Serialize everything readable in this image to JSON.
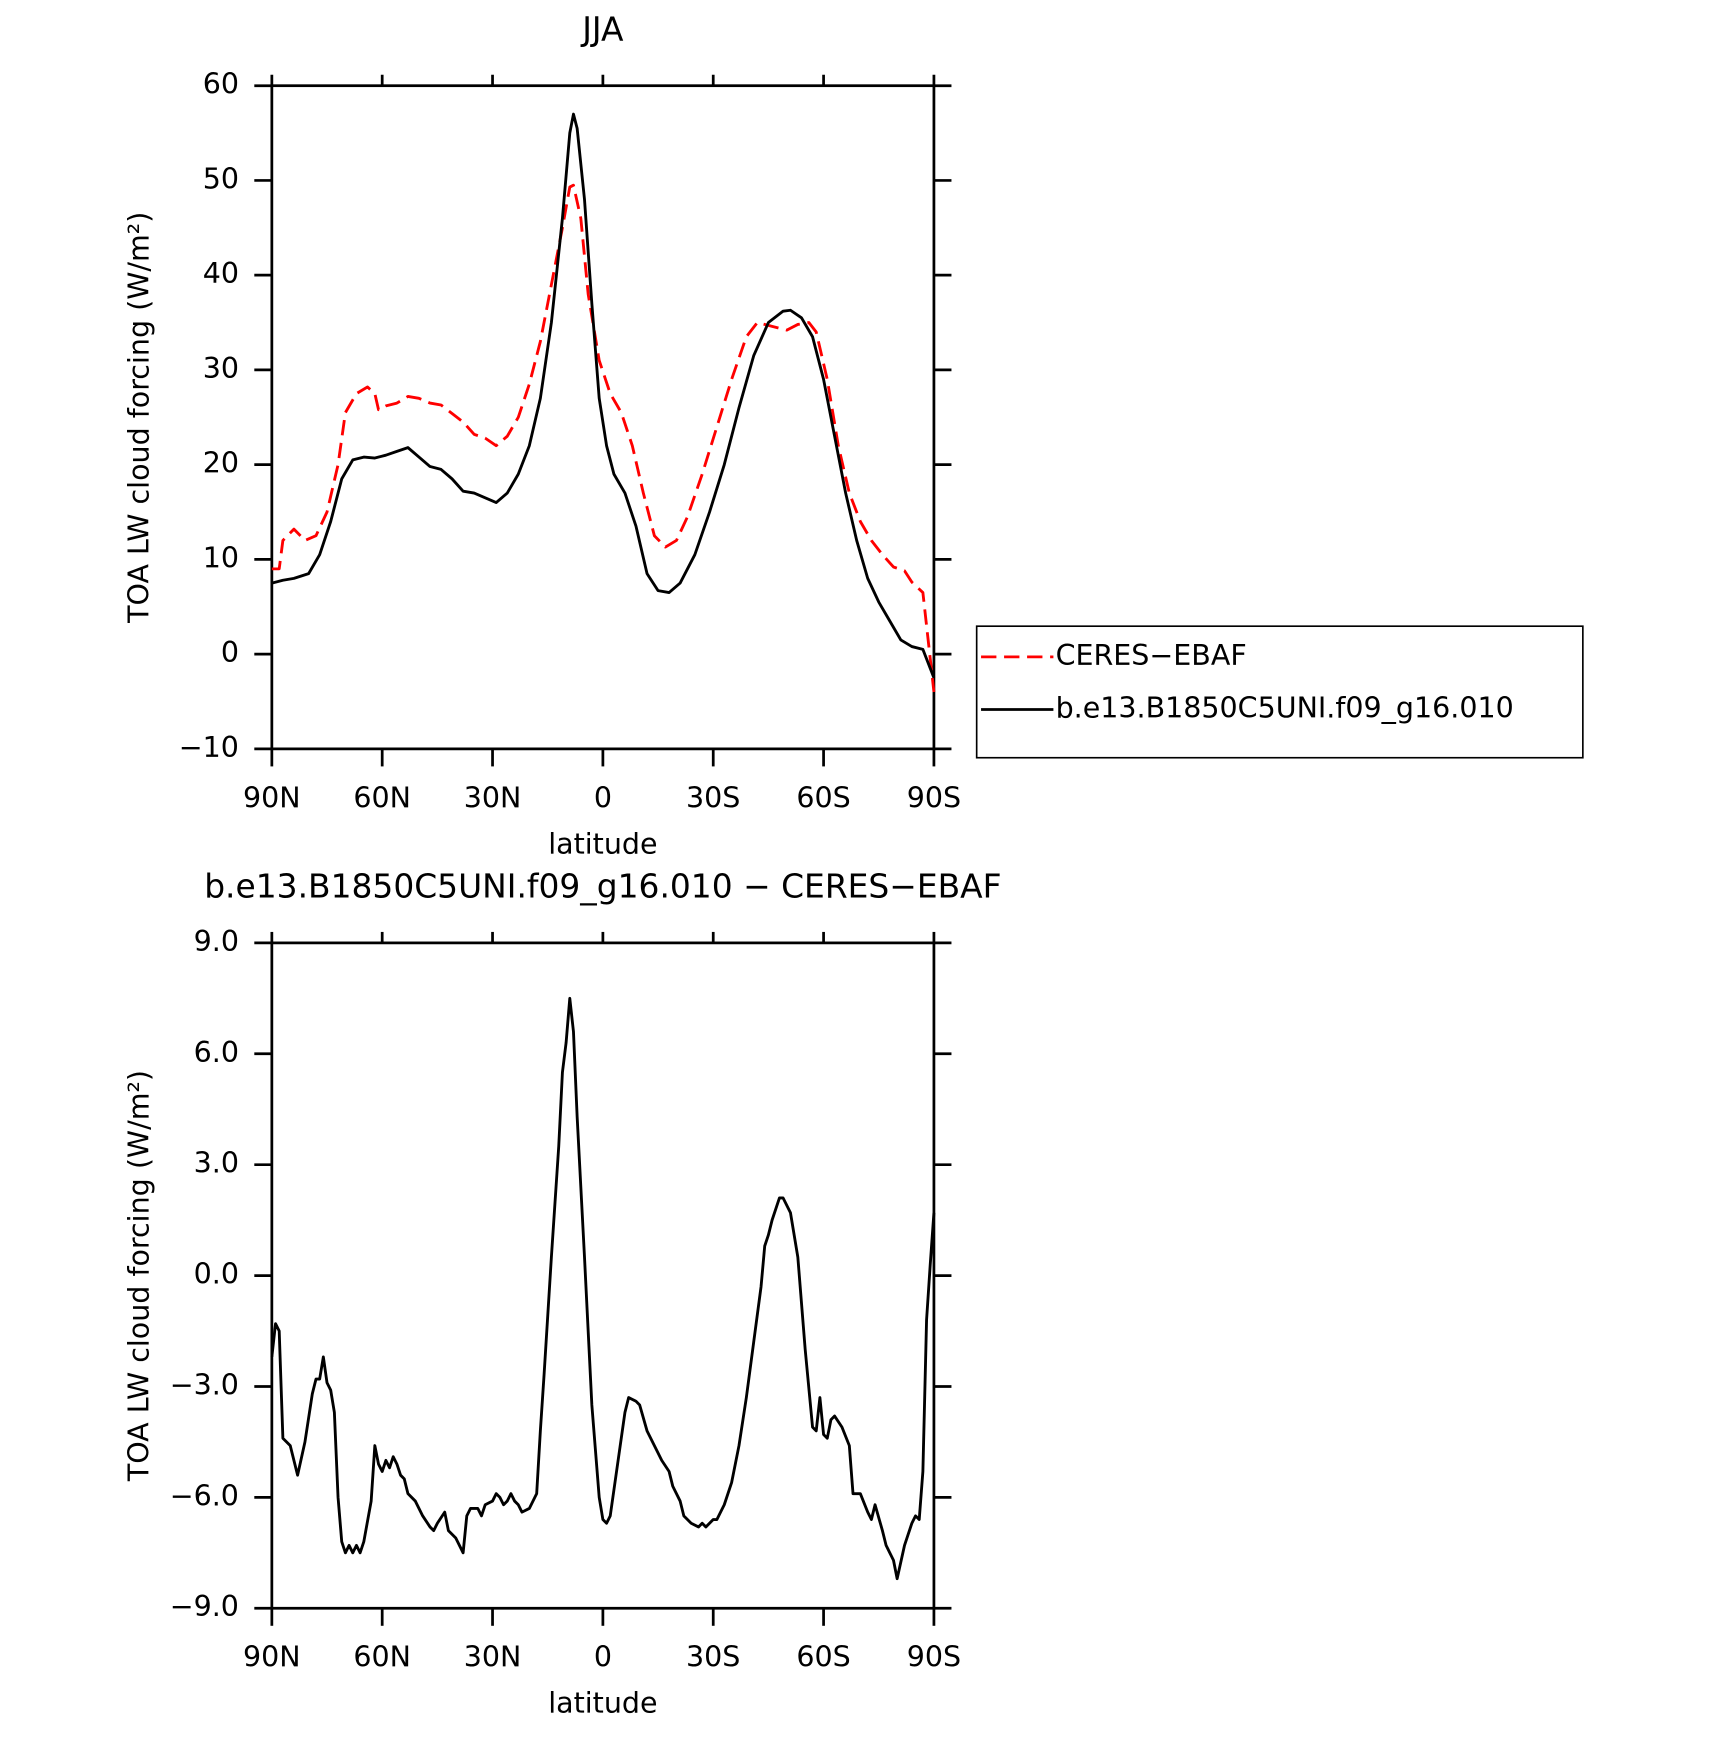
{
  "chart_data": [
    {
      "type": "line",
      "title": "JJA",
      "x_label": "latitude",
      "y_label": "TOA LW cloud forcing (W/m²)",
      "xlim": [
        90,
        -90
      ],
      "ylim": [
        -10,
        60
      ],
      "xticks": [
        {
          "value": 90,
          "label": "90N"
        },
        {
          "value": 60,
          "label": "60N"
        },
        {
          "value": 30,
          "label": "30N"
        },
        0,
        {
          "value": -30,
          "label": "30S"
        },
        {
          "value": -60,
          "label": "60S"
        },
        {
          "value": -90,
          "label": "90S"
        }
      ],
      "yticks": [
        {
          "value": -10,
          "label": "−10"
        },
        0,
        10,
        20,
        30,
        40,
        50,
        60
      ],
      "legend": "right",
      "series": [
        {
          "name": "CERES−EBAF",
          "color": "#ff0000",
          "dash": true,
          "x": [
            90,
            88,
            87,
            84,
            81,
            78,
            75,
            72,
            70,
            67,
            64,
            62,
            61,
            59,
            56,
            53,
            50,
            47,
            44,
            41,
            38,
            35,
            32,
            29,
            26,
            23,
            20,
            17,
            14,
            11,
            9,
            8,
            6,
            4,
            1,
            -2,
            -5,
            -8,
            -11,
            -14,
            -17,
            -20,
            -23,
            -27,
            -31,
            -35,
            -39,
            -42,
            -46,
            -50,
            -53,
            -56,
            -58,
            -61,
            -64,
            -67,
            -70,
            -73,
            -76,
            -79,
            -82,
            -84,
            -87,
            -88,
            -90
          ],
          "values": [
            9,
            9,
            12,
            13.2,
            12,
            12.5,
            15,
            20,
            25.5,
            27.5,
            28.2,
            27.5,
            25.8,
            26.2,
            26.5,
            27.2,
            27,
            26.5,
            26.3,
            25.4,
            24.5,
            23.2,
            22.8,
            22,
            23,
            25,
            28.5,
            33,
            39,
            45,
            49.3,
            49.5,
            46,
            38,
            31,
            27.5,
            25.5,
            22,
            17,
            12.5,
            11.3,
            12,
            14.5,
            19,
            24,
            29,
            33.5,
            35,
            34.6,
            34.2,
            34.8,
            35,
            34,
            29,
            22,
            17,
            14,
            12,
            10.5,
            9.2,
            8.8,
            7.6,
            6.5,
            3,
            -4
          ]
        },
        {
          "name": "b.e13.B1850C5UNI.f09_g16.010",
          "color": "#000000",
          "dash": false,
          "x": [
            90,
            87,
            84,
            80,
            77,
            74,
            71,
            68,
            65,
            62,
            59,
            56,
            53,
            50,
            47,
            44,
            41,
            38,
            35,
            32,
            29,
            26,
            23,
            20,
            17,
            14,
            11,
            9,
            8,
            7,
            5,
            3,
            1,
            -1,
            -3,
            -6,
            -9,
            -12,
            -15,
            -18,
            -21,
            -25,
            -29,
            -33,
            -37,
            -41,
            -45,
            -49,
            -51,
            -54,
            -57,
            -60,
            -63,
            -66,
            -69,
            -72,
            -75,
            -78,
            -81,
            -84,
            -87,
            -89,
            -90
          ],
          "values": [
            7.5,
            7.8,
            8,
            8.5,
            10.5,
            14,
            18.5,
            20.5,
            20.8,
            20.7,
            21,
            21.4,
            21.8,
            20.8,
            19.8,
            19.5,
            18.5,
            17.2,
            17,
            16.5,
            16,
            17,
            19,
            22,
            27,
            35,
            46,
            55,
            57,
            55.5,
            48,
            37,
            27,
            22,
            19,
            17,
            13.5,
            8.5,
            6.7,
            6.5,
            7.5,
            10.5,
            15,
            20,
            26,
            31.5,
            35,
            36.2,
            36.3,
            35.5,
            33.5,
            29,
            23,
            17,
            12,
            8,
            5.5,
            3.5,
            1.5,
            0.8,
            0.5,
            -1.5,
            -2.5
          ]
        }
      ]
    },
    {
      "type": "line",
      "title": "b.e13.B1850C5UNI.f09_g16.010 − CERES−EBAF",
      "x_label": "latitude",
      "y_label": "TOA LW cloud forcing (W/m²)",
      "xlim": [
        90,
        -90
      ],
      "ylim": [
        -9,
        9
      ],
      "xticks": [
        {
          "value": 90,
          "label": "90N"
        },
        {
          "value": 60,
          "label": "60N"
        },
        {
          "value": 30,
          "label": "30N"
        },
        0,
        {
          "value": -30,
          "label": "30S"
        },
        {
          "value": -60,
          "label": "60S"
        },
        {
          "value": -90,
          "label": "90S"
        }
      ],
      "yticks": [
        {
          "value": -9,
          "label": "−9.0"
        },
        {
          "value": -6,
          "label": "−6.0"
        },
        {
          "value": -3,
          "label": "−3.0"
        },
        {
          "value": 0,
          "label": "0.0"
        },
        {
          "value": 3,
          "label": "3.0"
        },
        {
          "value": 6,
          "label": "6.0"
        },
        {
          "value": 9,
          "label": "9.0"
        }
      ],
      "series": [
        {
          "color": "#000000",
          "dash": false,
          "x": [
            90,
            89,
            88,
            87,
            85,
            83,
            81,
            79,
            78,
            77,
            76,
            75,
            74,
            73,
            72,
            71,
            70,
            69,
            68,
            67,
            66,
            65,
            63,
            62,
            61,
            60,
            59,
            58,
            57,
            56,
            55,
            54,
            53,
            51,
            49,
            47,
            46,
            45,
            43,
            42,
            40,
            38,
            37,
            36,
            34,
            33,
            32,
            30,
            29,
            28,
            27,
            26,
            25,
            24,
            23,
            22,
            20,
            18,
            17,
            16,
            14,
            12,
            11,
            10,
            9,
            8,
            7,
            5,
            3,
            1,
            0,
            -1,
            -2,
            -4,
            -6,
            -7,
            -9,
            -10,
            -12,
            -14,
            -16,
            -18,
            -19,
            -21,
            -22,
            -24,
            -26,
            -27,
            -28,
            -30,
            -31,
            -33,
            -35,
            -37,
            -39,
            -41,
            -43,
            -44,
            -45,
            -46,
            -48,
            -49,
            -51,
            -53,
            -55,
            -57,
            -58,
            -59,
            -60,
            -61,
            -62,
            -63,
            -65,
            -67,
            -68,
            -70,
            -72,
            -73,
            -74,
            -76,
            -77,
            -79,
            -80,
            -82,
            -84,
            -85,
            -86,
            -87,
            -88,
            -89,
            -90
          ],
          "values": [
            -2.2,
            -1.3,
            -1.5,
            -4.4,
            -4.6,
            -5.4,
            -4.5,
            -3.2,
            -2.8,
            -2.8,
            -2.2,
            -2.9,
            -3.1,
            -3.7,
            -6,
            -7.2,
            -7.5,
            -7.3,
            -7.5,
            -7.3,
            -7.5,
            -7.2,
            -6.1,
            -4.6,
            -5.1,
            -5.3,
            -5,
            -5.2,
            -4.9,
            -5.1,
            -5.4,
            -5.5,
            -5.9,
            -6.1,
            -6.5,
            -6.8,
            -6.9,
            -6.7,
            -6.4,
            -6.9,
            -7.1,
            -7.5,
            -6.5,
            -6.3,
            -6.3,
            -6.5,
            -6.2,
            -6.1,
            -5.9,
            -6,
            -6.2,
            -6.1,
            -5.9,
            -6.1,
            -6.2,
            -6.4,
            -6.3,
            -5.9,
            -4.2,
            -2.7,
            0.5,
            3.5,
            5.5,
            6.3,
            7.5,
            6.6,
            4.3,
            0.5,
            -3.5,
            -6,
            -6.6,
            -6.7,
            -6.5,
            -5.1,
            -3.7,
            -3.3,
            -3.4,
            -3.5,
            -4.2,
            -4.6,
            -5,
            -5.3,
            -5.7,
            -6.1,
            -6.5,
            -6.7,
            -6.8,
            -6.7,
            -6.8,
            -6.6,
            -6.6,
            -6.2,
            -5.6,
            -4.6,
            -3.3,
            -1.8,
            -0.3,
            0.8,
            1.1,
            1.5,
            2.1,
            2.1,
            1.7,
            0.5,
            -2,
            -4.1,
            -4.2,
            -3.3,
            -4.3,
            -4.4,
            -3.9,
            -3.8,
            -4.1,
            -4.6,
            -5.9,
            -5.9,
            -6.4,
            -6.6,
            -6.2,
            -6.9,
            -7.3,
            -7.7,
            -8.2,
            -7.3,
            -6.7,
            -6.5,
            -6.6,
            -5.3,
            -1.2,
            0.3,
            1.7
          ]
        }
      ]
    }
  ]
}
